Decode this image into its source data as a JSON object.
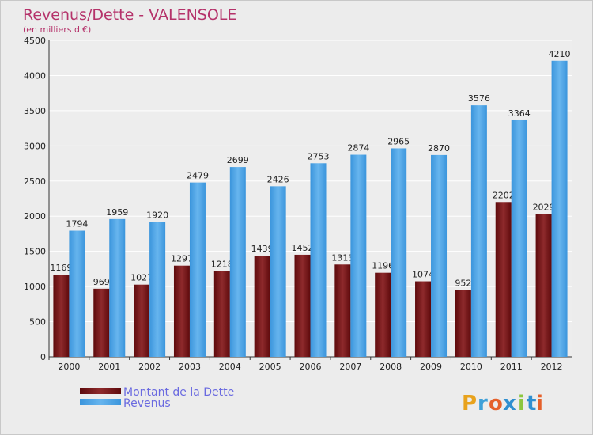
{
  "chart_data": {
    "type": "bar",
    "title": "Revenus/Dette - VALENSOLE",
    "subtitle": "(en milliers d'€)",
    "categories": [
      "2000",
      "2001",
      "2002",
      "2003",
      "2004",
      "2005",
      "2006",
      "2007",
      "2008",
      "2009",
      "2010",
      "2011",
      "2012"
    ],
    "series": [
      {
        "name": "Montant de la Dette",
        "color": "#7a1416",
        "values": [
          1169,
          969,
          1027,
          1297,
          1218,
          1439,
          1452,
          1313,
          1196,
          1074,
          952,
          2202,
          2029
        ]
      },
      {
        "name": "Revenus",
        "color": "#4da3e6",
        "values": [
          1794,
          1959,
          1920,
          2479,
          2699,
          2426,
          2753,
          2874,
          2965,
          2870,
          3576,
          3364,
          4210
        ]
      }
    ],
    "ylim": [
      0,
      4500
    ],
    "yticks": [
      0,
      500,
      1000,
      1500,
      2000,
      2500,
      3000,
      3500,
      4000,
      4500
    ],
    "grid": true,
    "legend_position": "bottom-left"
  },
  "logo": {
    "letters": [
      "P",
      "r",
      "o",
      "x",
      "i",
      "t",
      "i"
    ],
    "colors": [
      "#e8a21c",
      "#3fa0d8",
      "#e5602a",
      "#2f8fd0",
      "#8cc63f",
      "#2f8fd0",
      "#e5602a"
    ]
  }
}
